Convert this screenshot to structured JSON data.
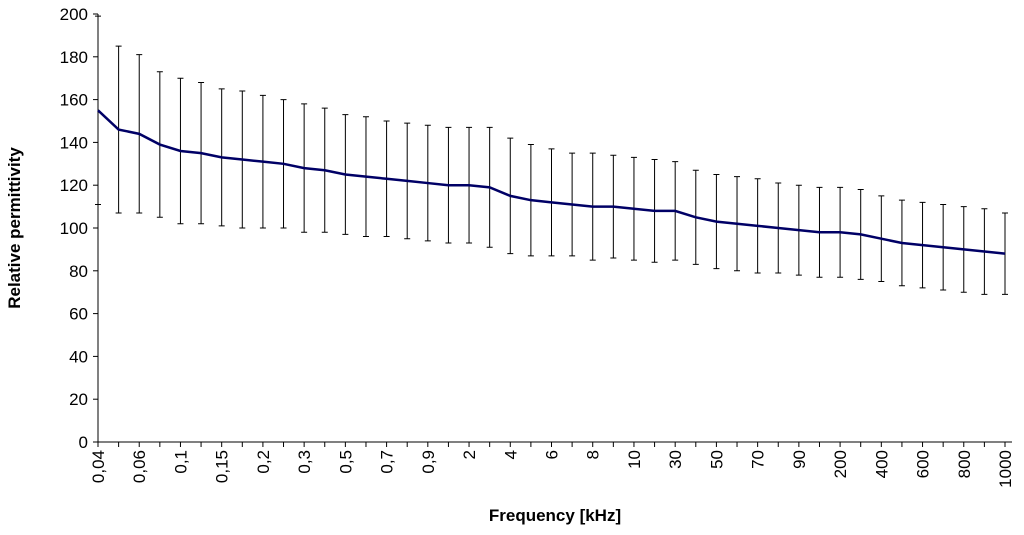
{
  "chart_data": {
    "type": "line",
    "x_label": "Frequency [kHz]",
    "y_label": "Relative permittivity",
    "categories": [
      "0,04",
      null,
      "0,06",
      null,
      "0,1",
      null,
      "0,15",
      null,
      "0,2",
      null,
      "0,3",
      null,
      "0,5",
      null,
      "0,7",
      null,
      "0,9",
      null,
      "2",
      null,
      "4",
      null,
      "6",
      null,
      "8",
      null,
      "10",
      null,
      "30",
      null,
      "50",
      null,
      "70",
      null,
      "90",
      null,
      "200",
      null,
      "400",
      null,
      "600",
      null,
      "800",
      null,
      "1000"
    ],
    "series": [
      {
        "color": "#000066",
        "values": [
          155,
          146,
          144,
          139,
          136,
          135,
          133,
          132,
          131,
          130,
          128,
          127,
          125,
          124,
          123,
          122,
          121,
          120,
          120,
          119,
          115,
          113,
          112,
          111,
          110,
          110,
          109,
          108,
          108,
          105,
          103,
          102,
          101,
          100,
          99,
          98,
          98,
          97,
          95,
          93,
          92,
          91,
          90,
          89,
          88
        ],
        "errors": [
          44,
          39,
          37,
          34,
          34,
          33,
          32,
          32,
          31,
          30,
          30,
          29,
          28,
          28,
          27,
          27,
          27,
          27,
          27,
          28,
          27,
          26,
          25,
          24,
          25,
          24,
          24,
          24,
          23,
          22,
          22,
          22,
          22,
          21,
          21,
          21,
          21,
          21,
          20,
          20,
          20,
          20,
          20,
          20,
          19
        ]
      }
    ],
    "ylim": [
      0,
      200
    ],
    "yticks": [
      0,
      20,
      40,
      60,
      80,
      100,
      120,
      140,
      160,
      180,
      200
    ]
  }
}
